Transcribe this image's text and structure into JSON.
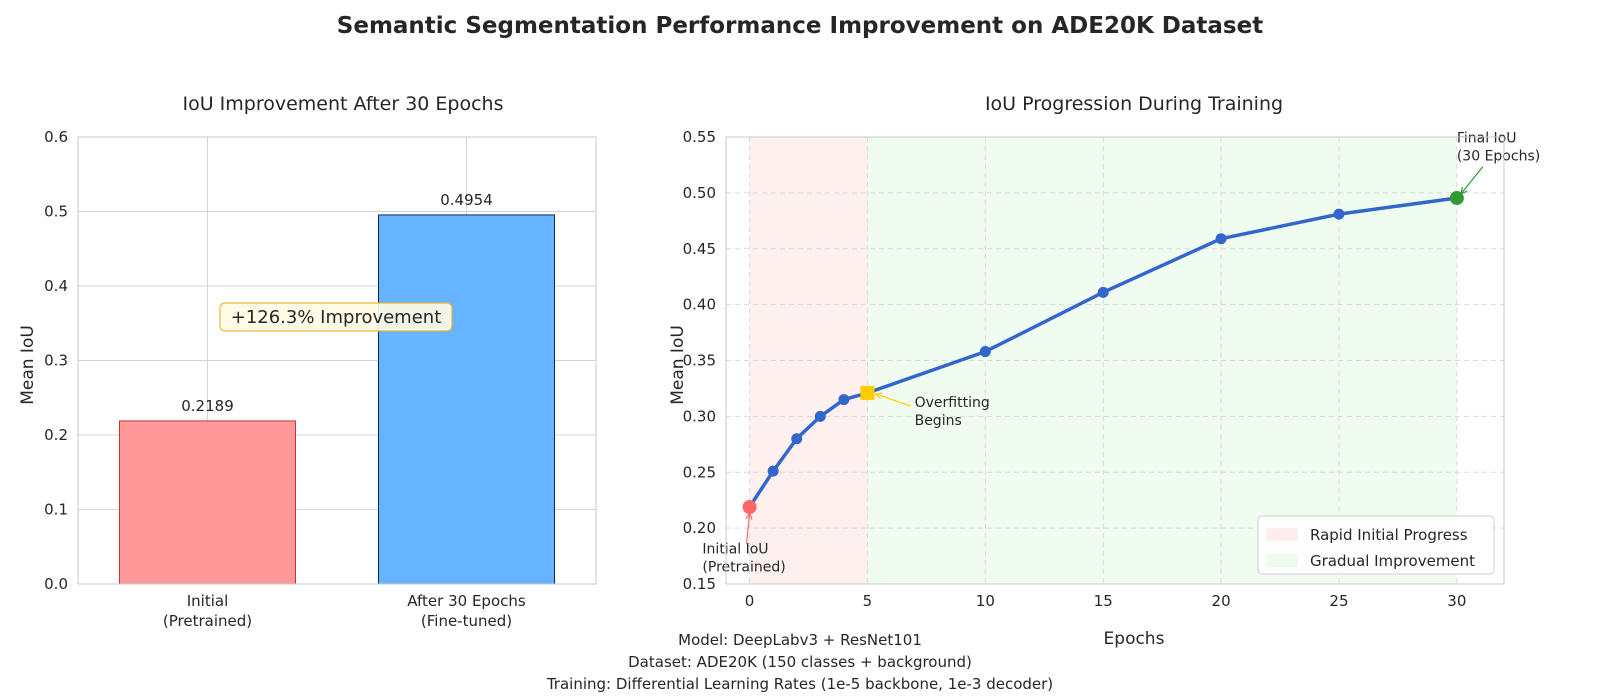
{
  "suptitle": "Semantic Segmentation Performance Improvement on ADE20K Dataset",
  "footer": {
    "lines": [
      "Model: DeepLabv3 + ResNet101",
      "Dataset: ADE20K (150 classes + background)",
      "Training: Differential Learning Rates (1e-5 backbone, 1e-3 decoder)"
    ]
  },
  "chart_data": [
    {
      "type": "bar",
      "title": "IoU Improvement After 30 Epochs",
      "xlabel": "",
      "ylabel": "Mean IoU",
      "ylim": [
        0,
        0.6
      ],
      "yticks": [
        "0.0",
        "0.1",
        "0.2",
        "0.3",
        "0.4",
        "0.5",
        "0.6"
      ],
      "grid": true,
      "categories": [
        [
          "Initial",
          "(Pretrained)"
        ],
        [
          "After 30 Epochs",
          "(Fine-tuned)"
        ]
      ],
      "values": [
        0.2189,
        0.4954
      ],
      "value_labels": [
        "0.2189",
        "0.4954"
      ],
      "colors": [
        "#ff9999",
        "#66b3ff"
      ],
      "edge_colors": [
        "#cc3333",
        "#0a2a66"
      ],
      "annotation": {
        "text": "+126.3% Improvement",
        "bg": "#fffbe6",
        "border": "#f0b429"
      }
    },
    {
      "type": "line",
      "title": "IoU Progression During Training",
      "xlabel": "Epochs",
      "ylabel": "Mean IoU",
      "xlim": [
        -1,
        32
      ],
      "ylim": [
        0.15,
        0.55
      ],
      "xticks": [
        0,
        5,
        10,
        15,
        20,
        25,
        30
      ],
      "yticks": [
        "0.15",
        "0.20",
        "0.25",
        "0.30",
        "0.35",
        "0.40",
        "0.45",
        "0.50",
        "0.55"
      ],
      "grid": true,
      "grid_style": "dashed",
      "series": [
        {
          "color": "#3366cc",
          "x": [
            0,
            1,
            2,
            3,
            4,
            5,
            10,
            15,
            20,
            25,
            30
          ],
          "y": [
            0.2189,
            0.251,
            0.28,
            0.3,
            0.315,
            0.321,
            0.358,
            0.411,
            0.459,
            0.481,
            0.4954
          ]
        }
      ],
      "shaded_regions": [
        {
          "label": "Rapid Initial Progress",
          "x0": 0,
          "x1": 5,
          "color": "#ffeeee"
        },
        {
          "label": "Gradual Improvement",
          "x0": 5,
          "x1": 30,
          "color": "#eefcee"
        }
      ],
      "legend_position": "lower-right",
      "highlights": [
        {
          "x": 0,
          "y": 0.2189,
          "color": "#ff6666",
          "marker": "circle"
        },
        {
          "x": 5,
          "y": 0.321,
          "color": "#ffcc00",
          "marker": "square"
        },
        {
          "x": 30,
          "y": 0.4954,
          "color": "#339933",
          "marker": "circle"
        }
      ],
      "annotations": [
        {
          "lines": [
            "Initial IoU",
            "(Pretrained)"
          ],
          "x": 0,
          "y": 0.2189,
          "text_x": -2,
          "text_y": 0.172,
          "arrow_color": "#ff6666"
        },
        {
          "lines": [
            "Overfitting",
            "Begins"
          ],
          "x": 5,
          "y": 0.321,
          "text_x": 7,
          "text_y": 0.303,
          "arrow_color": "#ffcc00"
        },
        {
          "lines": [
            "Final IoU",
            "(30 Epochs)"
          ],
          "x": 30,
          "y": 0.4954,
          "text_x": 30,
          "text_y": 0.536,
          "arrow_color": "#339933"
        }
      ]
    }
  ]
}
